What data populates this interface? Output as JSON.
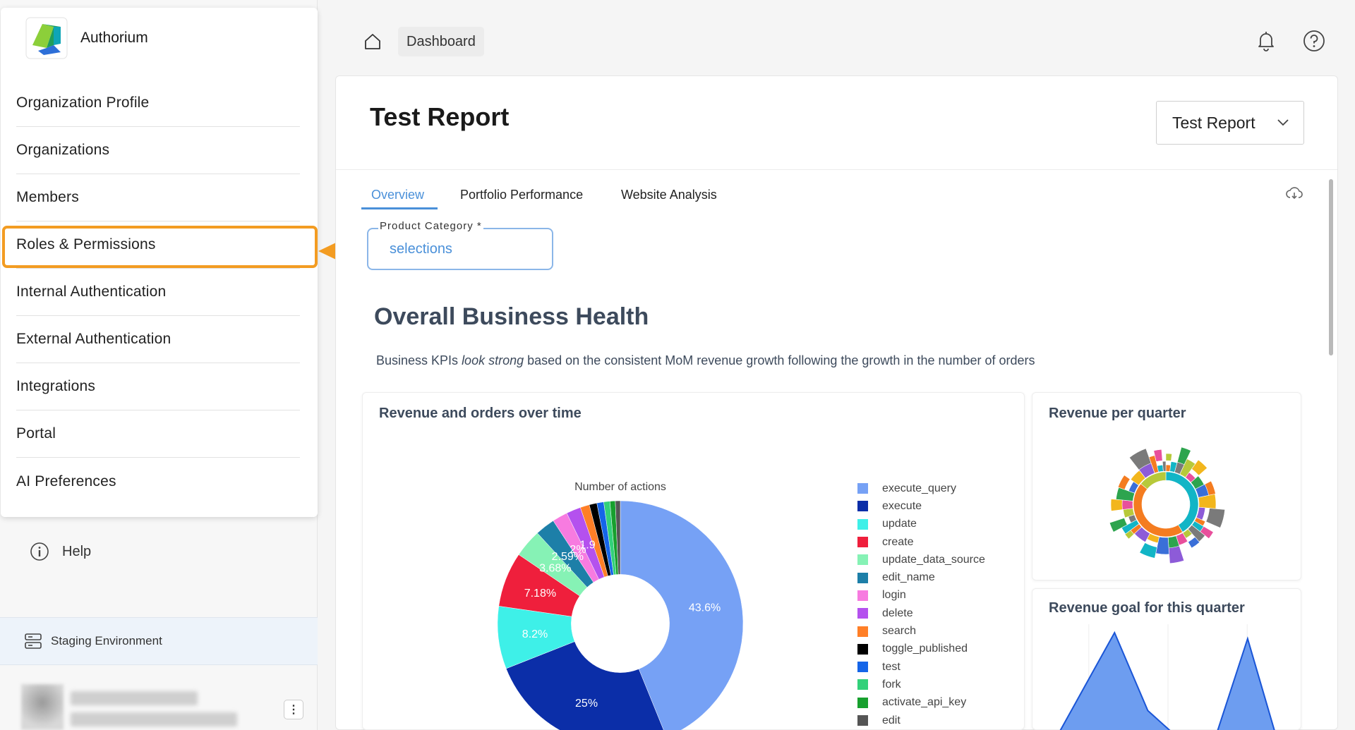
{
  "brand": {
    "name": "Authorium"
  },
  "sidebar": {
    "items": [
      {
        "label": "Organization Profile"
      },
      {
        "label": "Organizations"
      },
      {
        "label": "Members"
      },
      {
        "label": "Roles & Permissions"
      },
      {
        "label": "Internal Authentication"
      },
      {
        "label": "External Authentication"
      },
      {
        "label": "Integrations"
      },
      {
        "label": "Portal"
      },
      {
        "label": "AI Preferences"
      }
    ],
    "help_label": "Help",
    "environment_label": "Staging Environment"
  },
  "callout": {
    "number": "2",
    "color": "#f39c22"
  },
  "header": {
    "breadcrumb": "Dashboard"
  },
  "report": {
    "title": "Test Report",
    "selected": "Test Report"
  },
  "tabs": [
    {
      "label": "Overview",
      "active": true
    },
    {
      "label": "Portfolio Performance",
      "active": false
    },
    {
      "label": "Website Analysis",
      "active": false
    }
  ],
  "filter": {
    "label": "Product Category *",
    "value": "selections"
  },
  "section": {
    "title": "Overall Business Health",
    "desc_pre": "Business KPIs ",
    "desc_em": "look strong",
    "desc_post": " based on the consistent MoM revenue growth following the growth in the number of orders"
  },
  "cards": {
    "revenue_orders": "Revenue and orders over time",
    "revenue_quarter": "Revenue per quarter",
    "revenue_goal": "Revenue goal for this quarter"
  },
  "chart_data": [
    {
      "type": "pie",
      "title": "Number of actions",
      "hole": 0.4,
      "slices": [
        {
          "name": "execute_query",
          "value": 43.6,
          "color": "#76a1f5",
          "label": "43.6%"
        },
        {
          "name": "execute",
          "value": 25,
          "color": "#0b2ea8",
          "label": "25%"
        },
        {
          "name": "update",
          "value": 8.2,
          "color": "#3ef0e8",
          "label": "8.2%"
        },
        {
          "name": "create",
          "value": 7.18,
          "color": "#ef1f3c",
          "label": "7.18%"
        },
        {
          "name": "update_data_source",
          "value": 3.68,
          "color": "#86f2b5",
          "label": "3.68%"
        },
        {
          "name": "edit_name",
          "value": 2.59,
          "color": "#1d7fa8",
          "label": "2.59%"
        },
        {
          "name": "login",
          "value": 2,
          "color": "#f77be0",
          "label": "2%"
        },
        {
          "name": "delete",
          "value": 1.9,
          "color": "#b451ee",
          "label": "1.9"
        },
        {
          "name": "search",
          "value": 1.2,
          "color": "#ff7f27",
          "label": ""
        },
        {
          "name": "toggle_published",
          "value": 1.0,
          "color": "#000000",
          "label": ""
        },
        {
          "name": "test",
          "value": 0.9,
          "color": "#1565e8",
          "label": ""
        },
        {
          "name": "fork",
          "value": 0.8,
          "color": "#32d17a",
          "label": ""
        },
        {
          "name": "activate_api_key",
          "value": 0.7,
          "color": "#17a02e",
          "label": ""
        },
        {
          "name": "edit",
          "value": 0.65,
          "color": "#555555",
          "label": ""
        }
      ]
    },
    {
      "type": "area",
      "title": "",
      "x": [
        1,
        2,
        3,
        4,
        5,
        6,
        7,
        8
      ],
      "values": [
        0,
        50,
        100,
        35,
        10,
        10,
        95,
        0
      ],
      "color": "#6d9df0"
    }
  ]
}
